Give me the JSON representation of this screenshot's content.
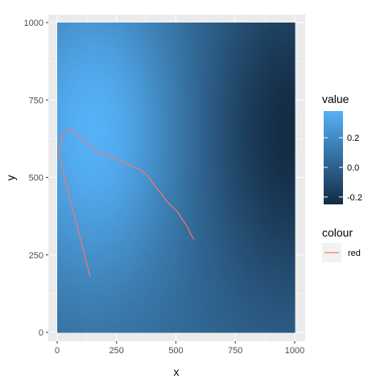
{
  "chart_data": {
    "type": "heatmap",
    "title": "",
    "xlabel": "x",
    "ylabel": "y",
    "xlim": [
      0,
      1000
    ],
    "ylim": [
      0,
      1000
    ],
    "x_ticks": [
      0,
      250,
      500,
      750,
      1000
    ],
    "y_ticks": [
      0,
      250,
      500,
      750,
      1000
    ],
    "x_tick_labels": [
      "0",
      "250",
      "500",
      "750",
      "1000"
    ],
    "y_tick_labels": [
      "0",
      "250",
      "500",
      "750",
      "1000"
    ],
    "panel_background": "#ebebeb",
    "grid": true,
    "fill": {
      "legend_title": "value",
      "range": [
        -0.25,
        0.38
      ],
      "breaks": [
        0.2,
        0.0,
        -0.2
      ],
      "break_labels": [
        "0.2",
        "0.0",
        "-0.2"
      ],
      "low_color": "#132B43",
      "high_color": "#56B1F7",
      "peak": {
        "x": 150,
        "y": 650,
        "value": 0.38
      },
      "min": {
        "x": 1000,
        "y": 650,
        "value": -0.25
      }
    },
    "path": {
      "legend_title": "colour",
      "label": "red",
      "color": "#F8766D",
      "points": [
        [
          575,
          300
        ],
        [
          560,
          320
        ],
        [
          545,
          345
        ],
        [
          530,
          360
        ],
        [
          515,
          380
        ],
        [
          500,
          395
        ],
        [
          485,
          405
        ],
        [
          470,
          415
        ],
        [
          455,
          430
        ],
        [
          440,
          445
        ],
        [
          425,
          460
        ],
        [
          410,
          475
        ],
        [
          395,
          490
        ],
        [
          380,
          505
        ],
        [
          365,
          515
        ],
        [
          350,
          525
        ],
        [
          335,
          530
        ],
        [
          320,
          535
        ],
        [
          305,
          540
        ],
        [
          290,
          545
        ],
        [
          275,
          550
        ],
        [
          260,
          555
        ],
        [
          245,
          560
        ],
        [
          230,
          565
        ],
        [
          215,
          570
        ],
        [
          200,
          575
        ],
        [
          185,
          575
        ],
        [
          170,
          580
        ],
        [
          155,
          590
        ],
        [
          140,
          600
        ],
        [
          125,
          610
        ],
        [
          110,
          620
        ],
        [
          95,
          630
        ],
        [
          80,
          640
        ],
        [
          65,
          650
        ],
        [
          50,
          655
        ],
        [
          35,
          650
        ],
        [
          25,
          640
        ],
        [
          20,
          625
        ],
        [
          15,
          610
        ],
        [
          10,
          595
        ],
        [
          8,
          580
        ],
        [
          10,
          565
        ],
        [
          15,
          550
        ],
        [
          20,
          535
        ],
        [
          25,
          520
        ],
        [
          30,
          505
        ],
        [
          35,
          490
        ],
        [
          40,
          475
        ],
        [
          45,
          460
        ],
        [
          50,
          445
        ],
        [
          55,
          430
        ],
        [
          60,
          415
        ],
        [
          65,
          400
        ],
        [
          70,
          385
        ],
        [
          75,
          370
        ],
        [
          80,
          355
        ],
        [
          85,
          340
        ],
        [
          90,
          325
        ],
        [
          95,
          310
        ],
        [
          100,
          295
        ],
        [
          105,
          280
        ],
        [
          110,
          265
        ],
        [
          115,
          250
        ],
        [
          120,
          235
        ],
        [
          125,
          220
        ],
        [
          130,
          205
        ],
        [
          135,
          190
        ],
        [
          140,
          180
        ]
      ]
    }
  }
}
